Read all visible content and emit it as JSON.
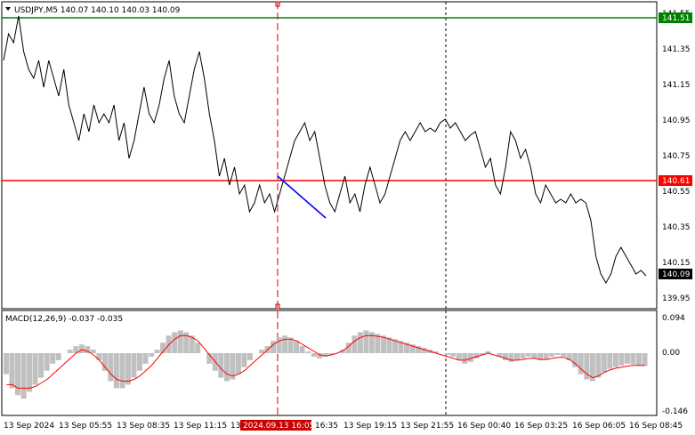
{
  "chart_data": [
    {
      "type": "line",
      "title": "USDJPY,M5  140.07 140.10 140.03 140.09",
      "ylim": [
        139.9,
        141.6
      ],
      "y_ticks": [
        "141.55",
        "141.51",
        "141.35",
        "141.15",
        "140.95",
        "140.75",
        "140.61",
        "140.55",
        "140.35",
        "140.15",
        "140.09",
        "139.95"
      ],
      "grid": false,
      "series": [
        {
          "values": [
            141.3,
            141.45,
            141.4,
            141.55,
            141.35,
            141.25,
            141.2,
            141.3,
            141.15,
            141.3,
            141.2,
            141.1,
            141.25,
            141.05,
            140.95,
            140.85,
            141.0,
            140.9,
            141.05,
            140.95,
            141.0,
            140.95,
            141.05,
            140.85,
            140.95,
            140.75,
            140.85,
            141.0,
            141.15,
            141.0,
            140.95,
            141.05,
            141.2,
            141.3,
            141.1,
            141.0,
            140.95,
            141.1,
            141.25,
            141.35,
            141.2,
            141.0,
            140.85,
            140.65,
            140.75,
            140.6,
            140.7,
            140.55,
            140.6,
            140.45,
            140.5,
            140.6,
            140.5,
            140.55,
            140.45,
            140.55,
            140.65,
            140.75,
            140.85,
            140.9,
            140.95,
            140.85,
            140.9,
            140.75,
            140.6,
            140.5,
            140.45,
            140.55,
            140.65,
            140.5,
            140.55,
            140.45,
            140.6,
            140.7,
            140.6,
            140.5,
            140.55,
            140.65,
            140.75,
            140.85,
            140.9,
            140.85,
            140.9,
            140.95,
            140.9,
            140.92,
            140.9,
            140.95,
            140.97,
            140.92,
            140.95,
            140.9,
            140.85,
            140.88,
            140.9,
            140.8,
            140.7,
            140.75,
            140.6,
            140.55,
            140.7,
            140.9,
            140.85,
            140.75,
            140.8,
            140.7,
            140.55,
            140.5,
            140.6,
            140.55,
            140.5,
            140.52,
            140.5,
            140.55,
            140.5,
            140.52,
            140.5,
            140.4,
            140.2,
            140.1,
            140.05,
            140.1,
            140.2,
            140.25,
            140.2,
            140.15,
            140.1,
            140.12,
            140.09
          ]
        }
      ],
      "horizontal_lines": [
        {
          "label": "141.51",
          "value": 141.51,
          "color": "#008000"
        },
        {
          "label": "140.61",
          "value": 140.61,
          "color": "#ff0000"
        }
      ],
      "current_price": {
        "label": "140.09",
        "value": 140.09
      }
    },
    {
      "type": "bar",
      "title": "MACD(12,26,9) -0.037 -0.035",
      "ylim": [
        -0.146,
        0.094
      ],
      "y_ticks": [
        "0.094",
        "0.00",
        "-0.146"
      ],
      "histogram": [
        -0.06,
        -0.1,
        -0.12,
        -0.13,
        -0.11,
        -0.09,
        -0.07,
        -0.05,
        -0.03,
        -0.02,
        0.0,
        0.01,
        0.02,
        0.025,
        0.02,
        0.01,
        -0.02,
        -0.05,
        -0.08,
        -0.1,
        -0.1,
        -0.09,
        -0.07,
        -0.05,
        -0.03,
        -0.01,
        0.01,
        0.03,
        0.05,
        0.06,
        0.065,
        0.06,
        0.05,
        0.03,
        0.0,
        -0.03,
        -0.05,
        -0.07,
        -0.08,
        -0.075,
        -0.06,
        -0.04,
        -0.02,
        0.0,
        0.01,
        0.02,
        0.035,
        0.045,
        0.05,
        0.045,
        0.035,
        0.02,
        0.005,
        -0.01,
        -0.015,
        -0.01,
        -0.005,
        0.0,
        0.01,
        0.03,
        0.05,
        0.06,
        0.065,
        0.06,
        0.055,
        0.05,
        0.045,
        0.04,
        0.035,
        0.03,
        0.025,
        0.02,
        0.015,
        0.01,
        0.005,
        0.0,
        -0.005,
        -0.01,
        -0.02,
        -0.03,
        -0.025,
        -0.015,
        -0.005,
        0.005,
        0.0,
        -0.01,
        -0.02,
        -0.025,
        -0.02,
        -0.015,
        -0.01,
        -0.015,
        -0.02,
        -0.018,
        -0.01,
        -0.005,
        -0.01,
        -0.02,
        -0.04,
        -0.06,
        -0.075,
        -0.08,
        -0.07,
        -0.055,
        -0.045,
        -0.04,
        -0.035,
        -0.03,
        -0.032,
        -0.035,
        -0.037
      ],
      "signal": [
        -0.09,
        -0.09,
        -0.1,
        -0.1,
        -0.1,
        -0.095,
        -0.085,
        -0.075,
        -0.06,
        -0.045,
        -0.03,
        -0.015,
        0.0,
        0.01,
        0.005,
        -0.005,
        -0.02,
        -0.04,
        -0.06,
        -0.075,
        -0.08,
        -0.08,
        -0.075,
        -0.065,
        -0.05,
        -0.035,
        -0.015,
        0.005,
        0.025,
        0.04,
        0.05,
        0.05,
        0.045,
        0.035,
        0.015,
        -0.005,
        -0.025,
        -0.045,
        -0.06,
        -0.065,
        -0.06,
        -0.05,
        -0.035,
        -0.02,
        -0.005,
        0.01,
        0.025,
        0.035,
        0.04,
        0.04,
        0.035,
        0.025,
        0.015,
        0.005,
        -0.005,
        -0.008,
        -0.005,
        0.0,
        0.008,
        0.02,
        0.035,
        0.045,
        0.05,
        0.05,
        0.048,
        0.045,
        0.04,
        0.035,
        0.03,
        0.025,
        0.02,
        0.015,
        0.01,
        0.005,
        0.0,
        -0.005,
        -0.01,
        -0.015,
        -0.02,
        -0.02,
        -0.015,
        -0.01,
        -0.005,
        0.0,
        -0.005,
        -0.01,
        -0.015,
        -0.02,
        -0.02,
        -0.018,
        -0.015,
        -0.015,
        -0.018,
        -0.018,
        -0.015,
        -0.012,
        -0.012,
        -0.018,
        -0.03,
        -0.045,
        -0.06,
        -0.07,
        -0.065,
        -0.055,
        -0.048,
        -0.043,
        -0.04,
        -0.037,
        -0.035,
        -0.035,
        -0.035
      ]
    }
  ],
  "x_labels": [
    "13 Sep 2024",
    "13 Sep 05:55",
    "13 Sep 08:35",
    "13 Sep 11:15",
    "13",
    "2024.09.13 16:05",
    "16:35",
    "13 Sep 19:15",
    "13 Sep 21:55",
    "16 Sep 00:40",
    "16 Sep 03:25",
    "16 Sep 06:05",
    "16 Sep 08:45"
  ],
  "colors": {
    "support_line": "#ff0000",
    "resistance_line": "#008000",
    "trend_segment": "#0000ff",
    "histogram": "#c0c0c0",
    "signal": "#ff0000",
    "crosshair": "#cc0000",
    "price_line": "#000000"
  }
}
